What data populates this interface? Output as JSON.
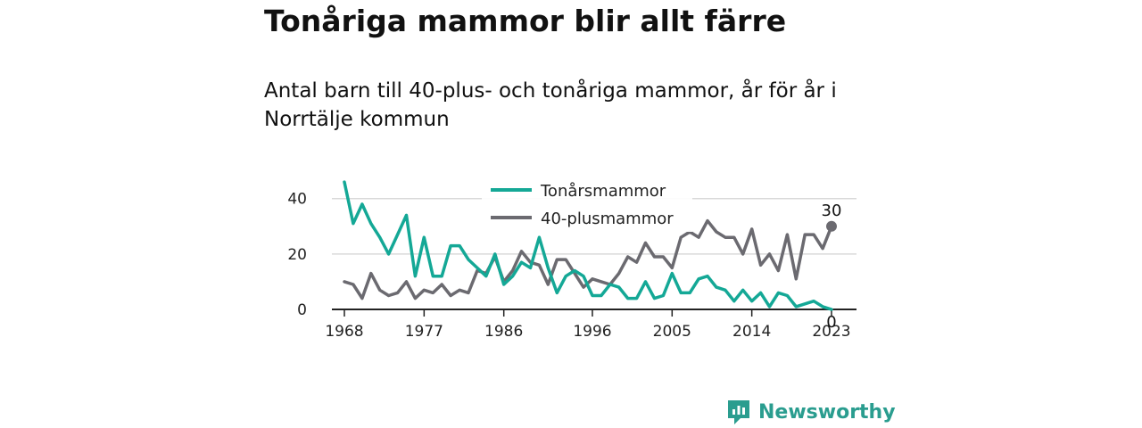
{
  "title": "Tonåriga mammor blir allt färre",
  "subtitle": "Antal barn till 40-plus- och tonåriga mammor, år för år i Norrtälje kommun",
  "brand": {
    "name": "Newsworthy",
    "color": "#2a9d8f"
  },
  "chart_data": {
    "type": "line",
    "x_start": 1968,
    "x_end": 2023,
    "x_ticks": [
      1968,
      1977,
      1986,
      1996,
      2005,
      2014,
      2023
    ],
    "y_ticks": [
      0,
      20,
      40
    ],
    "ylim": [
      0,
      47
    ],
    "grid": true,
    "legend_position": "top-center",
    "series": [
      {
        "name": "Tonårsmammor",
        "color": "#14a896",
        "end_label": "0",
        "values": [
          46,
          31,
          38,
          31,
          26,
          20,
          27,
          34,
          12,
          26,
          12,
          12,
          23,
          23,
          18,
          15,
          12,
          20,
          9,
          12,
          17,
          15,
          26,
          15,
          6,
          12,
          14,
          12,
          5,
          5,
          9,
          8,
          4,
          4,
          10,
          4,
          5,
          13,
          6,
          6,
          11,
          12,
          8,
          7,
          3,
          7,
          3,
          6,
          1,
          6,
          5,
          1,
          2,
          3,
          1,
          0
        ]
      },
      {
        "name": "40-plusmammor",
        "color": "#6b6a70",
        "end_label": "30",
        "values": [
          10,
          9,
          4,
          13,
          7,
          5,
          6,
          10,
          4,
          7,
          6,
          9,
          5,
          7,
          6,
          14,
          13,
          19,
          10,
          14,
          21,
          17,
          16,
          9,
          18,
          18,
          13,
          8,
          11,
          10,
          9,
          13,
          19,
          17,
          24,
          19,
          19,
          15,
          26,
          28,
          26,
          32,
          28,
          26,
          26,
          20,
          29,
          16,
          20,
          14,
          27,
          11,
          27,
          27,
          22,
          30
        ]
      }
    ]
  }
}
